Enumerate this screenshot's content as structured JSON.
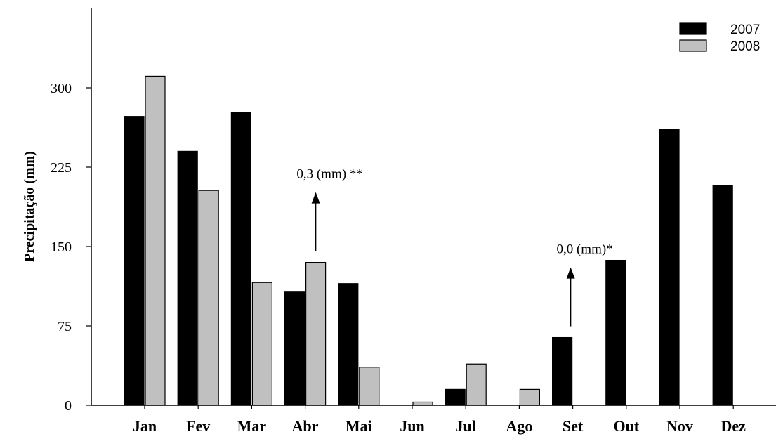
{
  "chart_data": {
    "type": "bar",
    "title": "",
    "xlabel": "",
    "ylabel": "Precipitação (mm)",
    "ylim": [
      0,
      375
    ],
    "yticks": [
      0,
      75,
      150,
      225,
      300
    ],
    "categories": [
      "Jan",
      "Fev",
      "Mar",
      "Abr",
      "Mai",
      "Jun",
      "Jul",
      "Ago",
      "Set",
      "Out",
      "Nov",
      "Dez"
    ],
    "series": [
      {
        "name": "2007",
        "color": "#000000",
        "values": [
          273,
          240,
          277,
          107,
          115,
          null,
          15,
          null,
          64,
          137,
          261,
          208
        ]
      },
      {
        "name": "2008",
        "color": "#c0c0c0",
        "values": [
          311,
          203,
          116,
          135,
          36,
          3,
          39,
          15,
          null,
          null,
          null,
          null
        ]
      }
    ],
    "legend": "top-right",
    "grid": false,
    "annotations": [
      {
        "text": "0,3 (mm) **",
        "category": "Abr",
        "series": "2008"
      },
      {
        "text": "0,0 (mm)*",
        "category": "Set",
        "series": "2007"
      }
    ]
  }
}
